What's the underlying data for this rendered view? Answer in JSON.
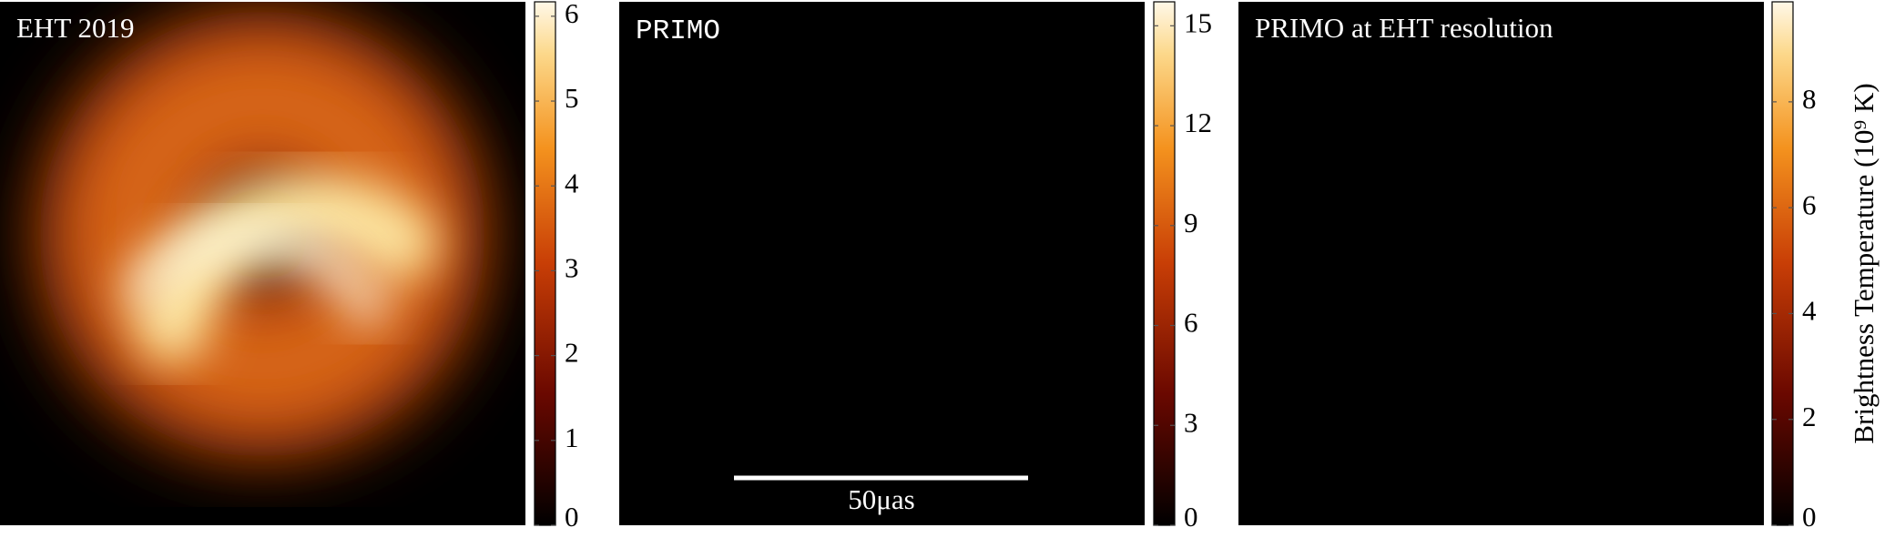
{
  "chart_data": [
    {
      "type": "image",
      "title": "EHT 2019",
      "clim": [
        0,
        6.17
      ],
      "cticks": [
        0,
        1,
        2,
        3,
        4,
        5,
        6
      ]
    },
    {
      "type": "image",
      "title": "PRIMO",
      "clim": [
        0,
        15.72
      ],
      "cticks": [
        0,
        3,
        6,
        9,
        12,
        15
      ],
      "annotation": "50μas"
    },
    {
      "type": "image",
      "title": "PRIMO at EHT resolution",
      "clim": [
        0,
        9.89
      ],
      "cticks": [
        0,
        2,
        4,
        6,
        8
      ],
      "colorbar_label": "Brightness Temperature (10⁹ K)"
    }
  ]
}
